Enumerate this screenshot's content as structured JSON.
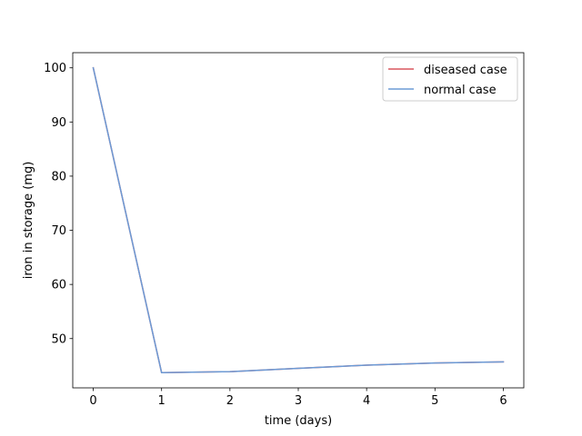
{
  "chart_data": {
    "type": "line",
    "title": "",
    "xlabel": "time (days)",
    "ylabel": "iron in storage (mg)",
    "xlim": [
      -0.3,
      6.3
    ],
    "ylim": [
      40.9,
      102.8
    ],
    "xticks": [
      0,
      1,
      2,
      3,
      4,
      5,
      6
    ],
    "yticks": [
      50,
      60,
      70,
      80,
      90,
      100
    ],
    "grid": false,
    "legend": {
      "placement": "top-right"
    },
    "series": [
      {
        "name": "diseased case",
        "color": "#d9575f",
        "x": [
          0,
          1,
          2,
          3,
          4,
          5,
          6
        ],
        "y": [
          100,
          43.7,
          43.9,
          44.5,
          45.1,
          45.5,
          45.7
        ]
      },
      {
        "name": "normal case",
        "color": "#6b9bd6",
        "x": [
          0,
          1,
          2,
          3,
          4,
          5,
          6
        ],
        "y": [
          100,
          43.7,
          43.9,
          44.5,
          45.1,
          45.5,
          45.7
        ]
      }
    ]
  }
}
